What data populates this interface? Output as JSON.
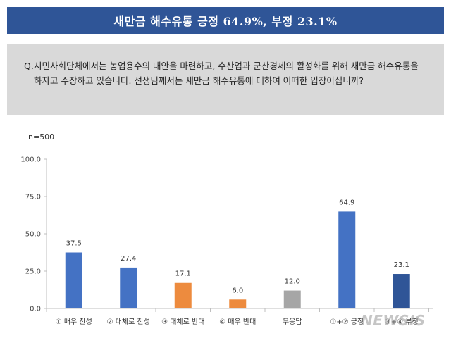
{
  "header": {
    "title": "새만금 해수유통 긍정 64.9%, 부정 23.1%"
  },
  "question": {
    "marker": "Q.",
    "text": "시민사회단체에서는 농업용수의 대안을 마련하고, 수산업과 군산경제의 활성화를 위해 새만금 해수유통을 하자고 주장하고 있습니다. 선생님께서는 새만금 해수유통에 대하여 어떠한 입장이십니까?"
  },
  "sample_size": "n=500",
  "watermark": "NEWSIS",
  "chart_data": {
    "type": "bar",
    "categories": [
      "① 매우 찬성",
      "② 대체로 찬성",
      "③ 대체로 반대",
      "④ 매우 반대",
      "무응답",
      "①+② 긍정",
      "③+④ 부정"
    ],
    "values": [
      37.5,
      27.4,
      17.1,
      6.0,
      12.0,
      64.9,
      23.1
    ],
    "value_labels": [
      "37.5",
      "27.4",
      "17.1",
      "6.0",
      "12.0",
      "64.9",
      "23.1"
    ],
    "colors": [
      "#4472c4",
      "#4472c4",
      "#ed8b3e",
      "#ed8b3e",
      "#a6a6a6",
      "#4472c4",
      "#2f5597"
    ],
    "yticks": [
      "0.0",
      "25.0",
      "50.0",
      "75.0",
      "100.0"
    ],
    "ylim": [
      0,
      100
    ],
    "grid": false,
    "legend": "none"
  }
}
